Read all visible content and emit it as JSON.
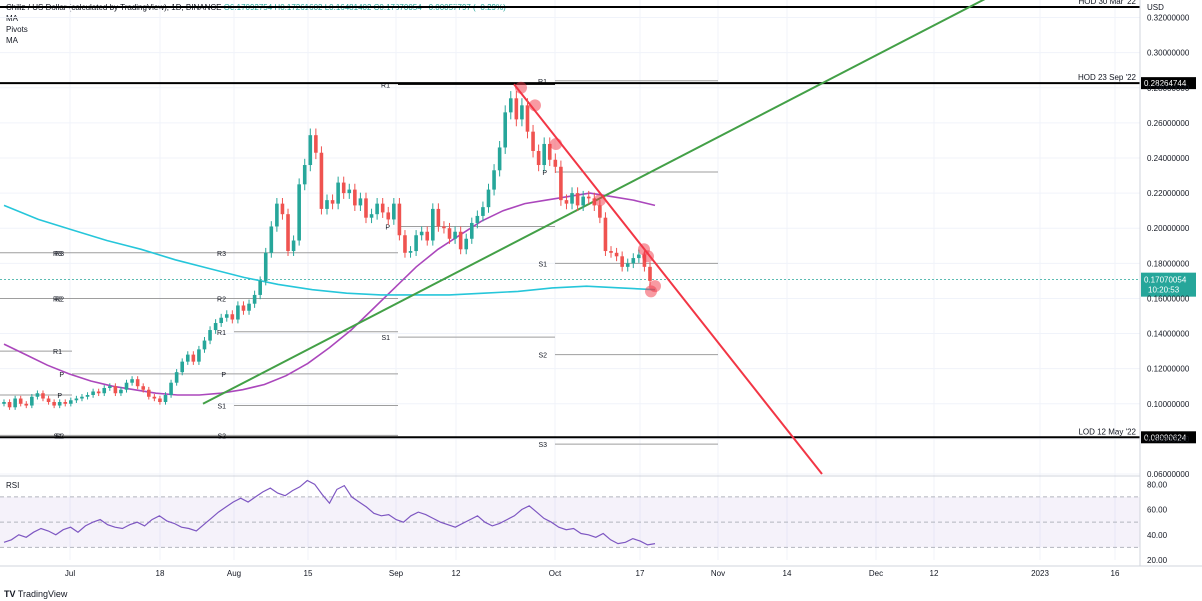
{
  "legend": {
    "title": "Chiliz / US Dollar (calculated by TradingView), 1D, BINANCE",
    "ohlc": "O0.17092754  H0.17261602  L0.16481402  C0.17070054  −0.00057797 (−0.29%)",
    "indicators": [
      "MA",
      "Pivots",
      "MA"
    ]
  },
  "footer": {
    "logo": "TradingView"
  },
  "colors": {
    "up": "#26a69a",
    "down": "#ef5350",
    "ma_fast": "#ab47bc",
    "ma_slow": "#26c6da",
    "trend_green": "#43a047",
    "trend_red": "#f23645",
    "rsi": "#7e57c2",
    "level_line": "#000000",
    "price_tag": "#26a69a"
  },
  "chart_data": [
    {
      "type": "candlestick",
      "symbol": "CHZUSD",
      "timeframe": "1D",
      "ylim": [
        0.06,
        0.33
      ],
      "y_scale": "linear",
      "x_tick_labels": [
        "Jul",
        "18",
        "Aug",
        "15",
        "Sep",
        "12",
        "Oct",
        "17",
        "Nov",
        "14",
        "Dec",
        "12",
        "2023",
        "16"
      ],
      "y_tick_labels": [
        "0.06000000",
        "0.08000000",
        "0.10000000",
        "0.12000000",
        "0.14000000",
        "0.16000000",
        "0.18000000",
        "0.20000000",
        "0.22000000",
        "0.24000000",
        "0.26000000",
        "0.28000000",
        "0.30000000",
        "0.32000000"
      ],
      "axis_unit": "USD",
      "current_price": {
        "value": "0.17070054",
        "countdown": "10:20:53"
      },
      "horizontal_levels": [
        {
          "label": "HOD 30 Mar '22",
          "value": 0.335
        },
        {
          "label": "HOD 23 Sep '22",
          "value": 0.28264744,
          "tag": "0.28264744"
        },
        {
          "label": "LOD 12 May '22",
          "value": 0.08090624,
          "tag": "0.08090624"
        }
      ],
      "pivot_labels": [
        "R3",
        "R2",
        "R1",
        "P",
        "S1",
        "S2",
        "S3"
      ],
      "candles_summary": "Daily candles from late June 2022 to about 19 Oct 2022: base near 0.10 through July, rally in August to peak near 0.27 around 23 Sep, then decline to about 0.17.",
      "closes": [
        0.101,
        0.098,
        0.103,
        0.1,
        0.099,
        0.104,
        0.106,
        0.103,
        0.101,
        0.099,
        0.101,
        0.1,
        0.102,
        0.103,
        0.104,
        0.105,
        0.107,
        0.106,
        0.109,
        0.11,
        0.106,
        0.108,
        0.112,
        0.114,
        0.11,
        0.108,
        0.104,
        0.103,
        0.101,
        0.105,
        0.112,
        0.118,
        0.124,
        0.128,
        0.124,
        0.131,
        0.136,
        0.142,
        0.146,
        0.149,
        0.151,
        0.148,
        0.156,
        0.153,
        0.157,
        0.162,
        0.17,
        0.186,
        0.201,
        0.214,
        0.208,
        0.187,
        0.193,
        0.225,
        0.236,
        0.253,
        0.243,
        0.211,
        0.216,
        0.214,
        0.226,
        0.22,
        0.222,
        0.213,
        0.217,
        0.206,
        0.208,
        0.214,
        0.209,
        0.205,
        0.214,
        0.196,
        0.186,
        0.187,
        0.196,
        0.198,
        0.193,
        0.211,
        0.201,
        0.2,
        0.194,
        0.198,
        0.188,
        0.194,
        0.203,
        0.207,
        0.212,
        0.222,
        0.233,
        0.246,
        0.266,
        0.274,
        0.262,
        0.27,
        0.255,
        0.244,
        0.236,
        0.248,
        0.239,
        0.235,
        0.216,
        0.214,
        0.22,
        0.213,
        0.218,
        0.217,
        0.213,
        0.206,
        0.187,
        0.186,
        0.184,
        0.178,
        0.18,
        0.183,
        0.185,
        0.178,
        0.17
      ],
      "series": [
        {
          "name": "MA",
          "type": "line",
          "values": [
            0.134,
            0.128,
            0.122,
            0.117,
            0.113,
            0.11,
            0.108,
            0.106,
            0.105,
            0.105,
            0.106,
            0.108,
            0.111,
            0.116,
            0.123,
            0.132,
            0.142,
            0.154,
            0.166,
            0.178,
            0.188,
            0.196,
            0.204,
            0.21,
            0.214,
            0.216,
            0.218,
            0.22,
            0.218,
            0.216,
            0.213
          ]
        },
        {
          "name": "MA",
          "type": "line",
          "values": [
            0.213,
            0.205,
            0.199,
            0.193,
            0.188,
            0.182,
            0.177,
            0.172,
            0.168,
            0.165,
            0.163,
            0.162,
            0.162,
            0.162,
            0.163,
            0.164,
            0.166,
            0.167,
            0.166,
            0.165
          ]
        }
      ],
      "trendlines": [
        {
          "name": "support",
          "color": "green"
        },
        {
          "name": "resistance",
          "color": "red"
        }
      ]
    },
    {
      "type": "line",
      "name": "RSI",
      "ylim": [
        20,
        85
      ],
      "y_tick_labels": [
        "20.00",
        "40.00",
        "60.00",
        "80.00"
      ],
      "band": [
        30,
        70
      ],
      "values": [
        34,
        36,
        40,
        38,
        42,
        45,
        43,
        40,
        44,
        46,
        42,
        47,
        50,
        52,
        48,
        46,
        45,
        48,
        50,
        47,
        52,
        55,
        51,
        49,
        46,
        45,
        43,
        48,
        53,
        58,
        62,
        66,
        69,
        66,
        70,
        74,
        77,
        73,
        71,
        75,
        78,
        83,
        80,
        72,
        65,
        76,
        79,
        70,
        66,
        62,
        57,
        55,
        56,
        52,
        50,
        55,
        58,
        56,
        53,
        50,
        48,
        46,
        49,
        52,
        55,
        50,
        47,
        49,
        52,
        55,
        60,
        63,
        58,
        53,
        50,
        46,
        44,
        45,
        41,
        40,
        38,
        41,
        36,
        33,
        34,
        37,
        35,
        32,
        33
      ]
    }
  ]
}
